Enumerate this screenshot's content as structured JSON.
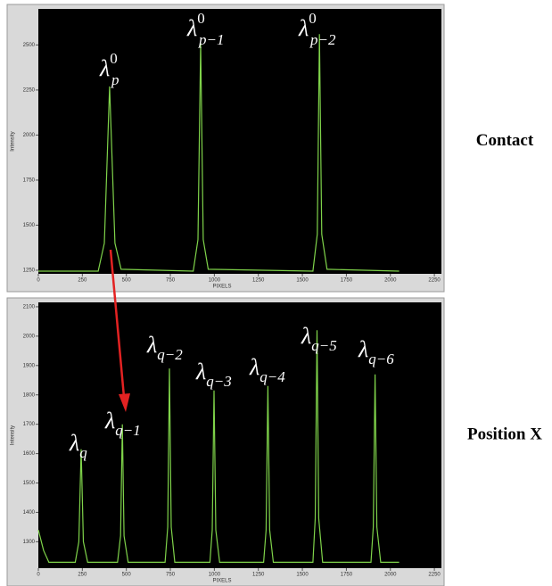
{
  "chart_data": [
    {
      "type": "line",
      "xlabel": "PIXELS",
      "ylabel": "Intensity",
      "side_label": "Contact",
      "color": "#7fd34a",
      "x": [
        0,
        340,
        375,
        405,
        435,
        470,
        880,
        907,
        922,
        937,
        965,
        1560,
        1585,
        1597,
        1610,
        1640,
        2050
      ],
      "values": [
        1245,
        1245,
        1400,
        2270,
        1400,
        1255,
        1245,
        1420,
        2510,
        1420,
        1255,
        1245,
        1450,
        2560,
        1450,
        1255,
        1245
      ],
      "xlim": [
        0,
        2290
      ],
      "ylim": [
        1230,
        2700
      ],
      "xticks": [
        0,
        250,
        500,
        750,
        1000,
        1250,
        1500,
        1750,
        2000,
        2250
      ],
      "yticks": [
        1250,
        1500,
        1750,
        2000,
        2250,
        2500
      ],
      "annotations": [
        {
          "base": "λ",
          "sub": "p",
          "sup": "0"
        },
        {
          "base": "λ",
          "sub": "p−1",
          "sup": "0"
        },
        {
          "base": "λ",
          "sub": "p−2",
          "sup": "0"
        }
      ]
    },
    {
      "type": "line",
      "xlabel": "PIXELS",
      "ylabel": "Intensity",
      "side_label": "Position X",
      "color": "#7fd34a",
      "x": [
        0,
        30,
        60,
        210,
        230,
        243,
        256,
        280,
        450,
        467,
        477,
        487,
        510,
        720,
        735,
        745,
        755,
        775,
        975,
        988,
        998,
        1008,
        1030,
        1280,
        1294,
        1304,
        1314,
        1335,
        1560,
        1573,
        1583,
        1593,
        1615,
        1890,
        1903,
        1913,
        1923,
        1945,
        2050
      ],
      "values": [
        1340,
        1270,
        1230,
        1230,
        1300,
        1615,
        1300,
        1230,
        1230,
        1320,
        1700,
        1320,
        1230,
        1230,
        1350,
        1890,
        1350,
        1230,
        1230,
        1340,
        1815,
        1340,
        1230,
        1230,
        1340,
        1830,
        1340,
        1230,
        1230,
        1380,
        2020,
        1380,
        1230,
        1230,
        1350,
        1870,
        1350,
        1230,
        1230
      ],
      "xlim": [
        0,
        2290
      ],
      "ylim": [
        1210,
        2115
      ],
      "xticks": [
        0,
        250,
        500,
        750,
        1000,
        1250,
        1500,
        1750,
        2000,
        2250
      ],
      "yticks": [
        1300,
        1400,
        1500,
        1600,
        1700,
        1800,
        1900,
        2000,
        2100
      ],
      "annotations": [
        {
          "base": "λ",
          "sub": "q"
        },
        {
          "base": "λ",
          "sub": "q−1"
        },
        {
          "base": "λ",
          "sub": "q−2"
        },
        {
          "base": "λ",
          "sub": "q−3"
        },
        {
          "base": "λ",
          "sub": "q−4"
        },
        {
          "base": "λ",
          "sub": "q−5"
        },
        {
          "base": "λ",
          "sub": "q−6"
        }
      ]
    }
  ]
}
